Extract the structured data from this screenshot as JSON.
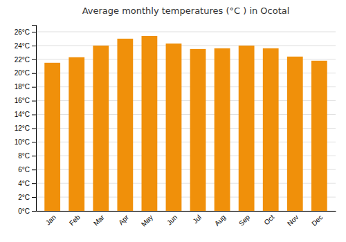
{
  "chart_data": {
    "type": "bar",
    "title": "Average monthly temperatures (°C ) in Ocotal",
    "categories": [
      "Jan",
      "Feb",
      "Mar",
      "Apr",
      "May",
      "Jun",
      "Jul",
      "Aug",
      "Sep",
      "Oct",
      "Nov",
      "Dec"
    ],
    "values": [
      21.5,
      22.3,
      24.0,
      25.0,
      25.4,
      24.3,
      23.5,
      23.6,
      24.0,
      23.6,
      22.4,
      21.8
    ],
    "color": "#F0900A",
    "ylim": [
      0,
      27
    ],
    "yticks": [
      {
        "value": 0,
        "label": "0°C"
      },
      {
        "value": 2,
        "label": "2°C"
      },
      {
        "value": 4,
        "label": "4°C"
      },
      {
        "value": 6,
        "label": "6°C"
      },
      {
        "value": 8,
        "label": "8°C"
      },
      {
        "value": 10,
        "label": "10°C"
      },
      {
        "value": 12,
        "label": "12°C"
      },
      {
        "value": 14,
        "label": "14°C"
      },
      {
        "value": 16,
        "label": "16°C"
      },
      {
        "value": 18,
        "label": "18°C"
      },
      {
        "value": 20,
        "label": "20°C"
      },
      {
        "value": 22,
        "label": "22°C"
      },
      {
        "value": 24,
        "label": "24°C"
      },
      {
        "value": 26,
        "label": "26°C"
      }
    ],
    "grid": true
  }
}
